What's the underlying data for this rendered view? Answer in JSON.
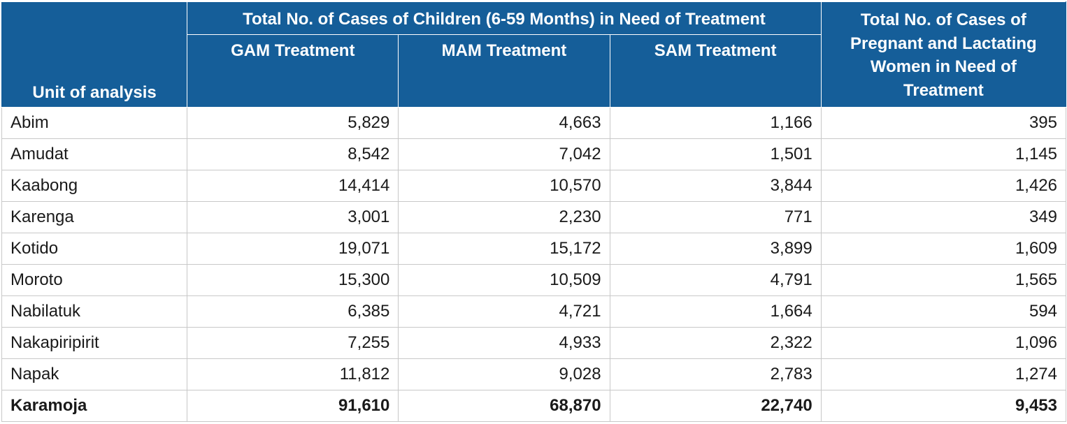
{
  "table": {
    "headers": {
      "unit": "Unit of analysis",
      "children_group": "Total No. of Cases of Children (6-59 Months) in Need of Treatment",
      "gam": "GAM Treatment",
      "mam": "MAM Treatment",
      "sam": "SAM Treatment",
      "plw": "Total No. of Cases of Pregnant and Lactating Women in Need of Treatment"
    },
    "rows": [
      {
        "unit": "Abim",
        "gam": "5,829",
        "mam": "4,663",
        "sam": "1,166",
        "plw": "395"
      },
      {
        "unit": "Amudat",
        "gam": "8,542",
        "mam": "7,042",
        "sam": "1,501",
        "plw": "1,145"
      },
      {
        "unit": "Kaabong",
        "gam": "14,414",
        "mam": "10,570",
        "sam": "3,844",
        "plw": "1,426"
      },
      {
        "unit": "Karenga",
        "gam": "3,001",
        "mam": "2,230",
        "sam": "771",
        "plw": "349"
      },
      {
        "unit": "Kotido",
        "gam": "19,071",
        "mam": "15,172",
        "sam": "3,899",
        "plw": "1,609"
      },
      {
        "unit": "Moroto",
        "gam": "15,300",
        "mam": "10,509",
        "sam": "4,791",
        "plw": "1,565"
      },
      {
        "unit": "Nabilatuk",
        "gam": "6,385",
        "mam": "4,721",
        "sam": "1,664",
        "plw": "594"
      },
      {
        "unit": "Nakapiripirit",
        "gam": "7,255",
        "mam": "4,933",
        "sam": "2,322",
        "plw": "1,096"
      },
      {
        "unit": "Napak",
        "gam": "11,812",
        "mam": "9,028",
        "sam": "2,783",
        "plw": "1,274"
      }
    ],
    "total": {
      "unit": "Karamoja",
      "gam": "91,610",
      "mam": "68,870",
      "sam": "22,740",
      "plw": "9,453"
    },
    "colors": {
      "header_bg": "#155e99",
      "header_text": "#ffffff",
      "grid": "#c8c8c8"
    }
  }
}
